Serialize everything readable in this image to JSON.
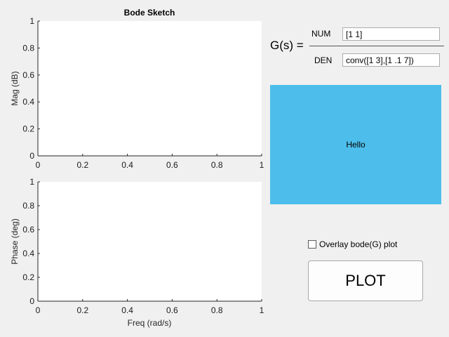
{
  "figure": {
    "title": "Bode Sketch"
  },
  "chart_data": [
    {
      "type": "line",
      "title": "Bode Sketch",
      "xlabel": "",
      "ylabel": "Mag (dB)",
      "xlim": [
        0,
        1
      ],
      "ylim": [
        0,
        1
      ],
      "xticks": [
        "0",
        "0.2",
        "0.4",
        "0.6",
        "0.8",
        "1"
      ],
      "yticks": [
        "0",
        "0.2",
        "0.4",
        "0.6",
        "0.8",
        "1"
      ],
      "series": [],
      "grid": false
    },
    {
      "type": "line",
      "title": "",
      "xlabel": "Freq (rad/s)",
      "ylabel": "Phase (deg)",
      "xlim": [
        0,
        1
      ],
      "ylim": [
        0,
        1
      ],
      "xticks": [
        "0",
        "0.2",
        "0.4",
        "0.6",
        "0.8",
        "1"
      ],
      "yticks": [
        "0",
        "0.2",
        "0.4",
        "0.6",
        "0.8",
        "1"
      ],
      "series": [],
      "grid": false
    }
  ],
  "transfer_function": {
    "label": "G(s) =",
    "num_label": "NUM",
    "den_label": "DEN",
    "num_value": "[1 1]",
    "den_value": "conv([1 3],[1 .1 7])"
  },
  "hello_panel": {
    "text": "Hello",
    "color": "#4dbeeb"
  },
  "overlay": {
    "label": "Overlay bode(G) plot",
    "checked": false
  },
  "plot_button": {
    "label": "PLOT"
  }
}
